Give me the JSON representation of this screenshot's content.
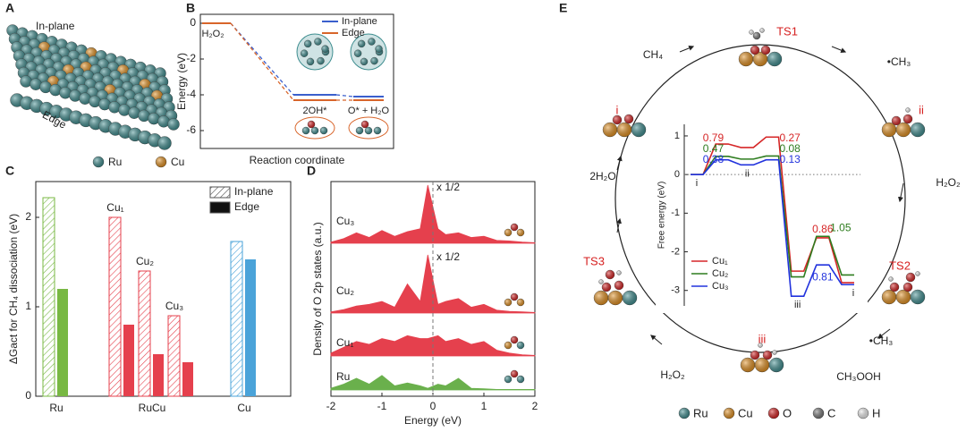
{
  "panel_labels": [
    "A",
    "B",
    "C",
    "D",
    "E"
  ],
  "panel_a": {
    "labels": [
      "In-plane",
      "Edge"
    ],
    "legend": [
      {
        "name": "Ru",
        "color": "#3f8e90"
      },
      {
        "name": "Cu",
        "color": "#e3901f"
      }
    ]
  },
  "chart_data": [
    {
      "type": "energy_levels",
      "ylabel": "Energy (eV)",
      "xlabel": "Reaction coordinate",
      "categories": [
        "H₂O₂",
        "2OH*",
        "O* + H₂O"
      ],
      "series": [
        {
          "name": "In-plane",
          "color": "#3a5fcd",
          "values": [
            0,
            -4.0,
            -4.1
          ]
        },
        {
          "name": "Edge",
          "color": "#d8652a",
          "values": [
            0,
            -4.3,
            -4.3
          ]
        }
      ],
      "ylim": [
        -7,
        0.5
      ],
      "yticks": [
        0,
        -2,
        -4,
        -6
      ],
      "legend": "upper right"
    },
    {
      "type": "grouped_bar",
      "ylabel": "ΔGact for CH₄ dissociation (eV)",
      "series": [
        {
          "name": "In-plane",
          "fill": "hatch"
        },
        {
          "name": "Edge",
          "fill": "solid"
        }
      ],
      "categories": [
        {
          "label": "Ru",
          "groups": [
            {
              "color": "#78b843",
              "values": [
                2.22,
                1.2
              ]
            }
          ]
        },
        {
          "label": "RuCu",
          "groups": [
            {
              "label": "Cu₁",
              "color": "#e5404d",
              "values": [
                2.0,
                0.8
              ]
            },
            {
              "label": "Cu₂",
              "color": "#e5404d",
              "values": [
                1.4,
                0.47
              ]
            },
            {
              "label": "Cu₃",
              "color": "#e5404d",
              "values": [
                0.9,
                0.38
              ]
            }
          ]
        },
        {
          "label": "Cu",
          "groups": [
            {
              "color": "#4aa3d9",
              "values": [
                1.73,
                1.53
              ]
            }
          ]
        }
      ],
      "ylim": [
        0,
        2.4
      ],
      "yticks": [
        0,
        1,
        2
      ],
      "legend": "upper right"
    },
    {
      "type": "stacked_dos",
      "ylabel": "Density of O 2p states (a.u.)",
      "xlabel": "Energy (eV)",
      "x": [
        -2,
        -1.75,
        -1.5,
        -1.25,
        -1,
        -0.75,
        -0.5,
        -0.25,
        -0.1,
        0.1,
        0.25,
        0.5,
        0.75,
        1,
        1.25,
        1.5,
        1.75,
        2
      ],
      "series": [
        {
          "name": "Cu₃",
          "color": "#e5404d",
          "annotation": "x 1/2",
          "values": [
            0.02,
            0.08,
            0.18,
            0.1,
            0.22,
            0.12,
            0.2,
            0.25,
            1.0,
            0.25,
            0.15,
            0.18,
            0.1,
            0.12,
            0.05,
            0.04,
            0.02,
            0.01
          ]
        },
        {
          "name": "Cu₂",
          "color": "#e5404d",
          "annotation": "x 1/2",
          "values": [
            0.02,
            0.06,
            0.12,
            0.15,
            0.2,
            0.1,
            0.5,
            0.2,
            1.0,
            0.15,
            0.2,
            0.25,
            0.1,
            0.15,
            0.05,
            0.03,
            0.02,
            0.01
          ]
        },
        {
          "name": "Cu₁",
          "color": "#e5404d",
          "values": [
            0.05,
            0.15,
            0.25,
            0.2,
            0.3,
            0.25,
            0.35,
            0.3,
            0.3,
            0.35,
            0.25,
            0.3,
            0.2,
            0.25,
            0.1,
            0.05,
            0.02,
            0.01
          ]
        },
        {
          "name": "Ru",
          "color": "#6ab04c",
          "values": [
            0.03,
            0.1,
            0.2,
            0.1,
            0.25,
            0.07,
            0.12,
            0.07,
            0.03,
            0.1,
            0.07,
            0.2,
            0.03,
            0.02,
            0.01,
            0.01,
            0.01,
            0.01
          ]
        }
      ],
      "xlim": [
        -2,
        2
      ],
      "xticks": [
        -2,
        -1,
        0,
        1,
        2
      ],
      "reference_x": 0
    },
    {
      "type": "free_energy",
      "ylabel": "Free energy (eV)",
      "categories": [
        "i",
        null,
        "ii",
        null,
        "iii",
        null,
        "i"
      ],
      "series": [
        {
          "name": "Cu₁",
          "color": "#d62728",
          "values": [
            0,
            0.79,
            0.7,
            0.97,
            -2.5,
            -1.64,
            -2.8
          ],
          "barriers": [
            0.79,
            0.27,
            0.86
          ]
        },
        {
          "name": "Cu₂",
          "color": "#2e7d1f",
          "values": [
            0,
            0.47,
            0.4,
            0.48,
            -2.65,
            -1.6,
            -2.6
          ],
          "barriers": [
            0.47,
            0.08,
            1.05
          ]
        },
        {
          "name": "Cu₃",
          "color": "#2233dd",
          "values": [
            0,
            0.38,
            0.25,
            0.38,
            -3.15,
            -2.34,
            -2.85
          ],
          "barriers": [
            0.38,
            0.13,
            0.81
          ]
        }
      ],
      "ylim": [
        -3.4,
        1.3
      ],
      "yticks": [
        1,
        0,
        -1,
        -2,
        -3
      ],
      "reference_y": 0,
      "legend": "lower left"
    }
  ],
  "panel_e": {
    "states": [
      "TS1",
      "ii",
      "TS2",
      "iii",
      "TS3",
      "i"
    ],
    "species": [
      "CH₄",
      "•CH₃",
      "H₂O₂",
      "•CH₃",
      "CH₃OOH",
      "H₂O₂",
      "2H₂O"
    ],
    "legend": [
      {
        "name": "Ru",
        "color": "#3f8e90"
      },
      {
        "name": "Cu",
        "color": "#e3901f"
      },
      {
        "name": "O",
        "color": "#d62020"
      },
      {
        "name": "C",
        "color": "#777777"
      },
      {
        "name": "H",
        "color": "#eeeeee"
      }
    ]
  }
}
